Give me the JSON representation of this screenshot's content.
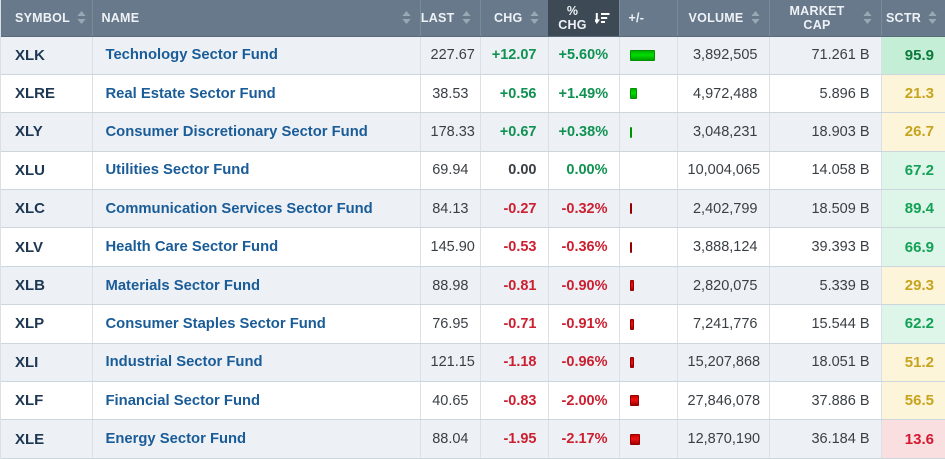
{
  "table": {
    "columns": [
      {
        "key": "symbol",
        "label": "SYMBOL",
        "sort": "both",
        "align": "left"
      },
      {
        "key": "name",
        "label": "NAME",
        "sort": "both",
        "align": "left"
      },
      {
        "key": "last",
        "label": "LAST",
        "sort": "both",
        "align": "right"
      },
      {
        "key": "chg",
        "label": "CHG",
        "sort": "both",
        "align": "right"
      },
      {
        "key": "pct_chg",
        "label": "% CHG",
        "sort": "desc-active",
        "align": "right"
      },
      {
        "key": "bar",
        "label": "+/-",
        "sort": "none",
        "align": "plain"
      },
      {
        "key": "volume",
        "label": "VOLUME",
        "sort": "both",
        "align": "right"
      },
      {
        "key": "market_cap",
        "label": "MARKET CAP",
        "sort": "both",
        "align": "right"
      },
      {
        "key": "sctr",
        "label": "SCTR",
        "sort": "both",
        "align": "right"
      }
    ],
    "rows": [
      {
        "symbol": "XLK",
        "name": "Technology Sector Fund",
        "last": "227.67",
        "chg": "+12.07",
        "pct_chg": "+5.60%",
        "pct_value": 5.6,
        "direction": "up",
        "volume": "3,892,505",
        "market_cap": "71.261 B",
        "sctr": "95.9",
        "sctr_band": "very_bullish"
      },
      {
        "symbol": "XLRE",
        "name": "Real Estate Sector Fund",
        "last": "38.53",
        "chg": "+0.56",
        "pct_chg": "+1.49%",
        "pct_value": 1.49,
        "direction": "up",
        "volume": "4,972,488",
        "market_cap": "5.896 B",
        "sctr": "21.3",
        "sctr_band": "neutral"
      },
      {
        "symbol": "XLY",
        "name": "Consumer Discretionary Sector Fund",
        "last": "178.33",
        "chg": "+0.67",
        "pct_chg": "+0.38%",
        "pct_value": 0.38,
        "direction": "up",
        "volume": "3,048,231",
        "market_cap": "18.903 B",
        "sctr": "26.7",
        "sctr_band": "neutral"
      },
      {
        "symbol": "XLU",
        "name": "Utilities Sector Fund",
        "last": "69.94",
        "chg": "0.00",
        "pct_chg": "0.00%",
        "pct_value": 0.0,
        "direction": "flat",
        "volume": "10,004,065",
        "market_cap": "14.058 B",
        "sctr": "67.2",
        "sctr_band": "bullish"
      },
      {
        "symbol": "XLC",
        "name": "Communication Services Sector Fund",
        "last": "84.13",
        "chg": "-0.27",
        "pct_chg": "-0.32%",
        "pct_value": 0.32,
        "direction": "down",
        "volume": "2,402,799",
        "market_cap": "18.509 B",
        "sctr": "89.4",
        "sctr_band": "bullish"
      },
      {
        "symbol": "XLV",
        "name": "Health Care Sector Fund",
        "last": "145.90",
        "chg": "-0.53",
        "pct_chg": "-0.36%",
        "pct_value": 0.36,
        "direction": "down",
        "volume": "3,888,124",
        "market_cap": "39.393 B",
        "sctr": "66.9",
        "sctr_band": "bullish"
      },
      {
        "symbol": "XLB",
        "name": "Materials Sector Fund",
        "last": "88.98",
        "chg": "-0.81",
        "pct_chg": "-0.90%",
        "pct_value": 0.9,
        "direction": "down",
        "volume": "2,820,075",
        "market_cap": "5.339 B",
        "sctr": "29.3",
        "sctr_band": "neutral"
      },
      {
        "symbol": "XLP",
        "name": "Consumer Staples Sector Fund",
        "last": "76.95",
        "chg": "-0.71",
        "pct_chg": "-0.91%",
        "pct_value": 0.91,
        "direction": "down",
        "volume": "7,241,776",
        "market_cap": "15.544 B",
        "sctr": "62.2",
        "sctr_band": "bullish"
      },
      {
        "symbol": "XLI",
        "name": "Industrial Sector Fund",
        "last": "121.15",
        "chg": "-1.18",
        "pct_chg": "-0.96%",
        "pct_value": 0.96,
        "direction": "down",
        "volume": "15,207,868",
        "market_cap": "18.051 B",
        "sctr": "51.2",
        "sctr_band": "neutral"
      },
      {
        "symbol": "XLF",
        "name": "Financial Sector Fund",
        "last": "40.65",
        "chg": "-0.83",
        "pct_chg": "-2.00%",
        "pct_value": 2.0,
        "direction": "down",
        "volume": "27,846,078",
        "market_cap": "37.886 B",
        "sctr": "56.5",
        "sctr_band": "neutral"
      },
      {
        "symbol": "XLE",
        "name": "Energy Sector Fund",
        "last": "88.04",
        "chg": "-1.95",
        "pct_chg": "-2.17%",
        "pct_value": 2.17,
        "direction": "down",
        "volume": "12,870,190",
        "market_cap": "36.184 B",
        "sctr": "13.6",
        "sctr_band": "bearish"
      }
    ]
  },
  "colors": {
    "positive": "#0f9251",
    "negative": "#cc1f30",
    "neutral_text": "#3a3f44",
    "bar_up_top": "#00b300",
    "bar_up_mid": "#00dd00",
    "bar_up_bottom": "#00a000",
    "bar_up_border": "#009300",
    "bar_down_top": "#cc0000",
    "bar_down_mid": "#ee1111",
    "bar_down_bottom": "#a00000",
    "bar_down_border": "#940000",
    "sctr_bands": {
      "very_bullish": {
        "text": "#0b7a3c",
        "bg": "#c4eed6"
      },
      "bullish": {
        "text": "#12a155",
        "bg": "#def5e9"
      },
      "neutral": {
        "text": "#c7a41d",
        "bg": "#fcf5da"
      },
      "bearish": {
        "text": "#d41830",
        "bg": "#fadfe1"
      }
    }
  }
}
